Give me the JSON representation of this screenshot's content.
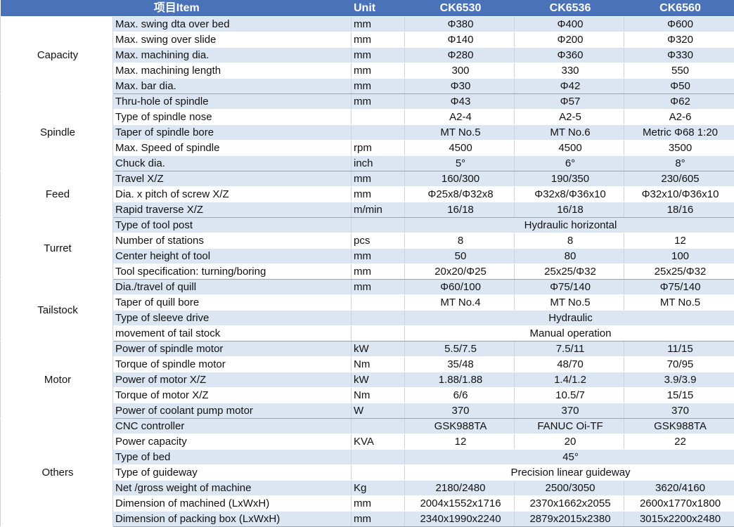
{
  "header": {
    "item": "项目Item",
    "unit": "Unit",
    "models": [
      "CK6530",
      "CK6536",
      "CK6560"
    ]
  },
  "groups": [
    {
      "name": "Capacity",
      "rows": [
        {
          "item": "Max. swing dta over bed",
          "unit": "mm",
          "values": [
            "Φ380",
            "Φ400",
            "Φ600"
          ]
        },
        {
          "item": "Max. swing over slide",
          "unit": "mm",
          "values": [
            "Φ140",
            "Φ200",
            "Φ320"
          ]
        },
        {
          "item": "Max. machining dia.",
          "unit": "mm",
          "values": [
            "Φ280",
            "Φ360",
            "Φ330"
          ]
        },
        {
          "item": "Max. machining length",
          "unit": "mm",
          "values": [
            "300",
            "330",
            "550"
          ]
        },
        {
          "item": "Max. bar dia.",
          "unit": "mm",
          "values": [
            "Φ30",
            "Φ42",
            "Φ50"
          ]
        }
      ]
    },
    {
      "name": "Spindle",
      "rows": [
        {
          "item": "Thru-hole of spindle",
          "unit": "mm",
          "values": [
            "Φ43",
            "Φ57",
            "Φ62"
          ]
        },
        {
          "item": "Type of spindle nose",
          "unit": "",
          "values": [
            "A2-4",
            "A2-5",
            "A2-6"
          ]
        },
        {
          "item": "Taper of spindle bore",
          "unit": "",
          "values": [
            "MT No.5",
            "MT No.6",
            "Metric Φ68 1:20"
          ]
        },
        {
          "item": "Max. Speed of spindle",
          "unit": "rpm",
          "values": [
            "4500",
            "4500",
            "3500"
          ]
        },
        {
          "item": "Chuck dia.",
          "unit": "inch",
          "values": [
            "5°",
            "6°",
            "8°"
          ]
        }
      ]
    },
    {
      "name": "Feed",
      "rows": [
        {
          "item": "Travel X/Z",
          "unit": "mm",
          "values": [
            "160/300",
            "190/350",
            "230/605"
          ]
        },
        {
          "item": "Dia. x pitch of screw X/Z",
          "unit": "mm",
          "values": [
            "Φ25x8/Φ32x8",
            "Φ32x8/Φ36x10",
            "Φ32x10/Φ36x10"
          ]
        },
        {
          "item": "Rapid traverse X/Z",
          "unit": "m/min",
          "values": [
            "16/18",
            "16/18",
            "18/16"
          ]
        }
      ]
    },
    {
      "name": "Turret",
      "rows": [
        {
          "item": "Type of tool post",
          "unit": "",
          "merged": "Hydraulic horizontal"
        },
        {
          "item": "Number of stations",
          "unit": "pcs",
          "values": [
            "8",
            "8",
            "12"
          ]
        },
        {
          "item": "Center height of tool",
          "unit": "mm",
          "values": [
            "50",
            "80",
            "100"
          ]
        },
        {
          "item": "Tool specification: turning/boring",
          "unit": "mm",
          "values": [
            "20x20/Φ25",
            "25x25/Φ32",
            "25x25/Φ32"
          ]
        }
      ]
    },
    {
      "name": "Tailstock",
      "rows": [
        {
          "item": "Dia./travel of quill",
          "unit": "mm",
          "values": [
            "Φ60/100",
            "Φ75/140",
            "Φ75/140"
          ]
        },
        {
          "item": "Taper of quill bore",
          "unit": "",
          "values": [
            "MT No.4",
            "MT No.5",
            "MT No.5"
          ]
        },
        {
          "item": "Type of sleeve drive",
          "unit": "",
          "merged": "Hydraulic"
        },
        {
          "item": "movement of tail stock",
          "unit": "",
          "merged": "Manual operation"
        }
      ]
    },
    {
      "name": "Motor",
      "rows": [
        {
          "item": "Power of spindle motor",
          "unit": "kW",
          "values": [
            "5.5/7.5",
            "7.5/11",
            "11/15"
          ]
        },
        {
          "item": "Torque of spindle motor",
          "unit": "Nm",
          "values": [
            "35/48",
            "48/70",
            "70/95"
          ]
        },
        {
          "item": "Power of motor X/Z",
          "unit": "kW",
          "values": [
            "1.88/1.88",
            "1.4/1.2",
            "3.9/3.9"
          ]
        },
        {
          "item": "Torque of motor X/Z",
          "unit": "Nm",
          "values": [
            "6/6",
            "10.5/7",
            "15/15"
          ]
        },
        {
          "item": "Power of coolant pump motor",
          "unit": "W",
          "values": [
            "370",
            "370",
            "370"
          ]
        }
      ]
    },
    {
      "name": "Others",
      "rows": [
        {
          "item": "CNC controller",
          "unit": "",
          "values": [
            "GSK988TA",
            "FANUC Oi-TF",
            "GSK988TA"
          ]
        },
        {
          "item": "Power capacity",
          "unit": "KVA",
          "values": [
            "12",
            "20",
            "22"
          ]
        },
        {
          "item": "Type of bed",
          "unit": "",
          "merged": "45°"
        },
        {
          "item": "Type of guideway",
          "unit": "",
          "merged": "Precision linear guideway"
        },
        {
          "item": "Net /gross weight of machine",
          "unit": "Kg",
          "values": [
            "2180/2480",
            "2500/3050",
            "3620/4160"
          ]
        },
        {
          "item": "Dimension of machined (LxWxH)",
          "unit": "mm",
          "values": [
            "2004x1552x1716",
            "2370x1662x2055",
            "2600x1770x1800"
          ]
        },
        {
          "item": "Dimension of packing box (LxWxH)",
          "unit": "mm",
          "values": [
            "2340x1990x2240",
            "2879x2015x2380",
            "3015x2200x2480"
          ]
        }
      ]
    }
  ]
}
